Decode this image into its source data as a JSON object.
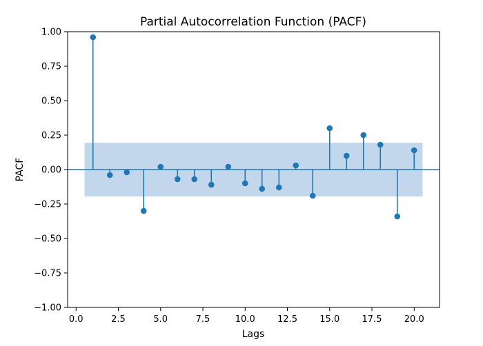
{
  "chart_data": {
    "type": "stem",
    "title": "Partial Autocorrelation Function (PACF)",
    "xlabel": "Lags",
    "ylabel": "PACF",
    "xlim": [
      -0.5,
      21.5
    ],
    "ylim": [
      -1.0,
      1.0
    ],
    "x_ticks": [
      0.0,
      2.5,
      5.0,
      7.5,
      10.0,
      12.5,
      15.0,
      17.5,
      20.0
    ],
    "x_tick_labels": [
      "0.0",
      "2.5",
      "5.0",
      "7.5",
      "10.0",
      "12.5",
      "15.0",
      "17.5",
      "20.0"
    ],
    "y_ticks": [
      -1.0,
      -0.75,
      -0.5,
      -0.25,
      0.0,
      0.25,
      0.5,
      0.75,
      1.0
    ],
    "y_tick_labels": [
      "−1.00",
      "−0.75",
      "−0.50",
      "−0.25",
      "0.00",
      "0.25",
      "0.50",
      "0.75",
      "1.00"
    ],
    "lags": [
      1,
      2,
      3,
      4,
      5,
      6,
      7,
      8,
      9,
      10,
      11,
      12,
      13,
      14,
      15,
      16,
      17,
      18,
      19,
      20
    ],
    "values": [
      0.96,
      -0.04,
      -0.02,
      -0.3,
      0.02,
      -0.07,
      -0.07,
      -0.11,
      0.02,
      -0.1,
      -0.14,
      -0.13,
      0.03,
      -0.19,
      0.3,
      0.1,
      0.25,
      0.18,
      -0.34,
      0.14
    ],
    "confidence_band": {
      "x_range": [
        0.5,
        20.5
      ],
      "lower": -0.195,
      "upper": 0.195
    },
    "grid": false,
    "colors": {
      "stem": "#1f77b4",
      "band": "#c2d7eb",
      "zero_line": "#1f77b4"
    }
  }
}
